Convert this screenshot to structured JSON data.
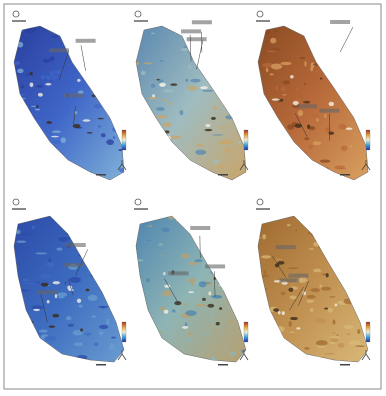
{
  "figure": {
    "panel_count": 6
  }
}
